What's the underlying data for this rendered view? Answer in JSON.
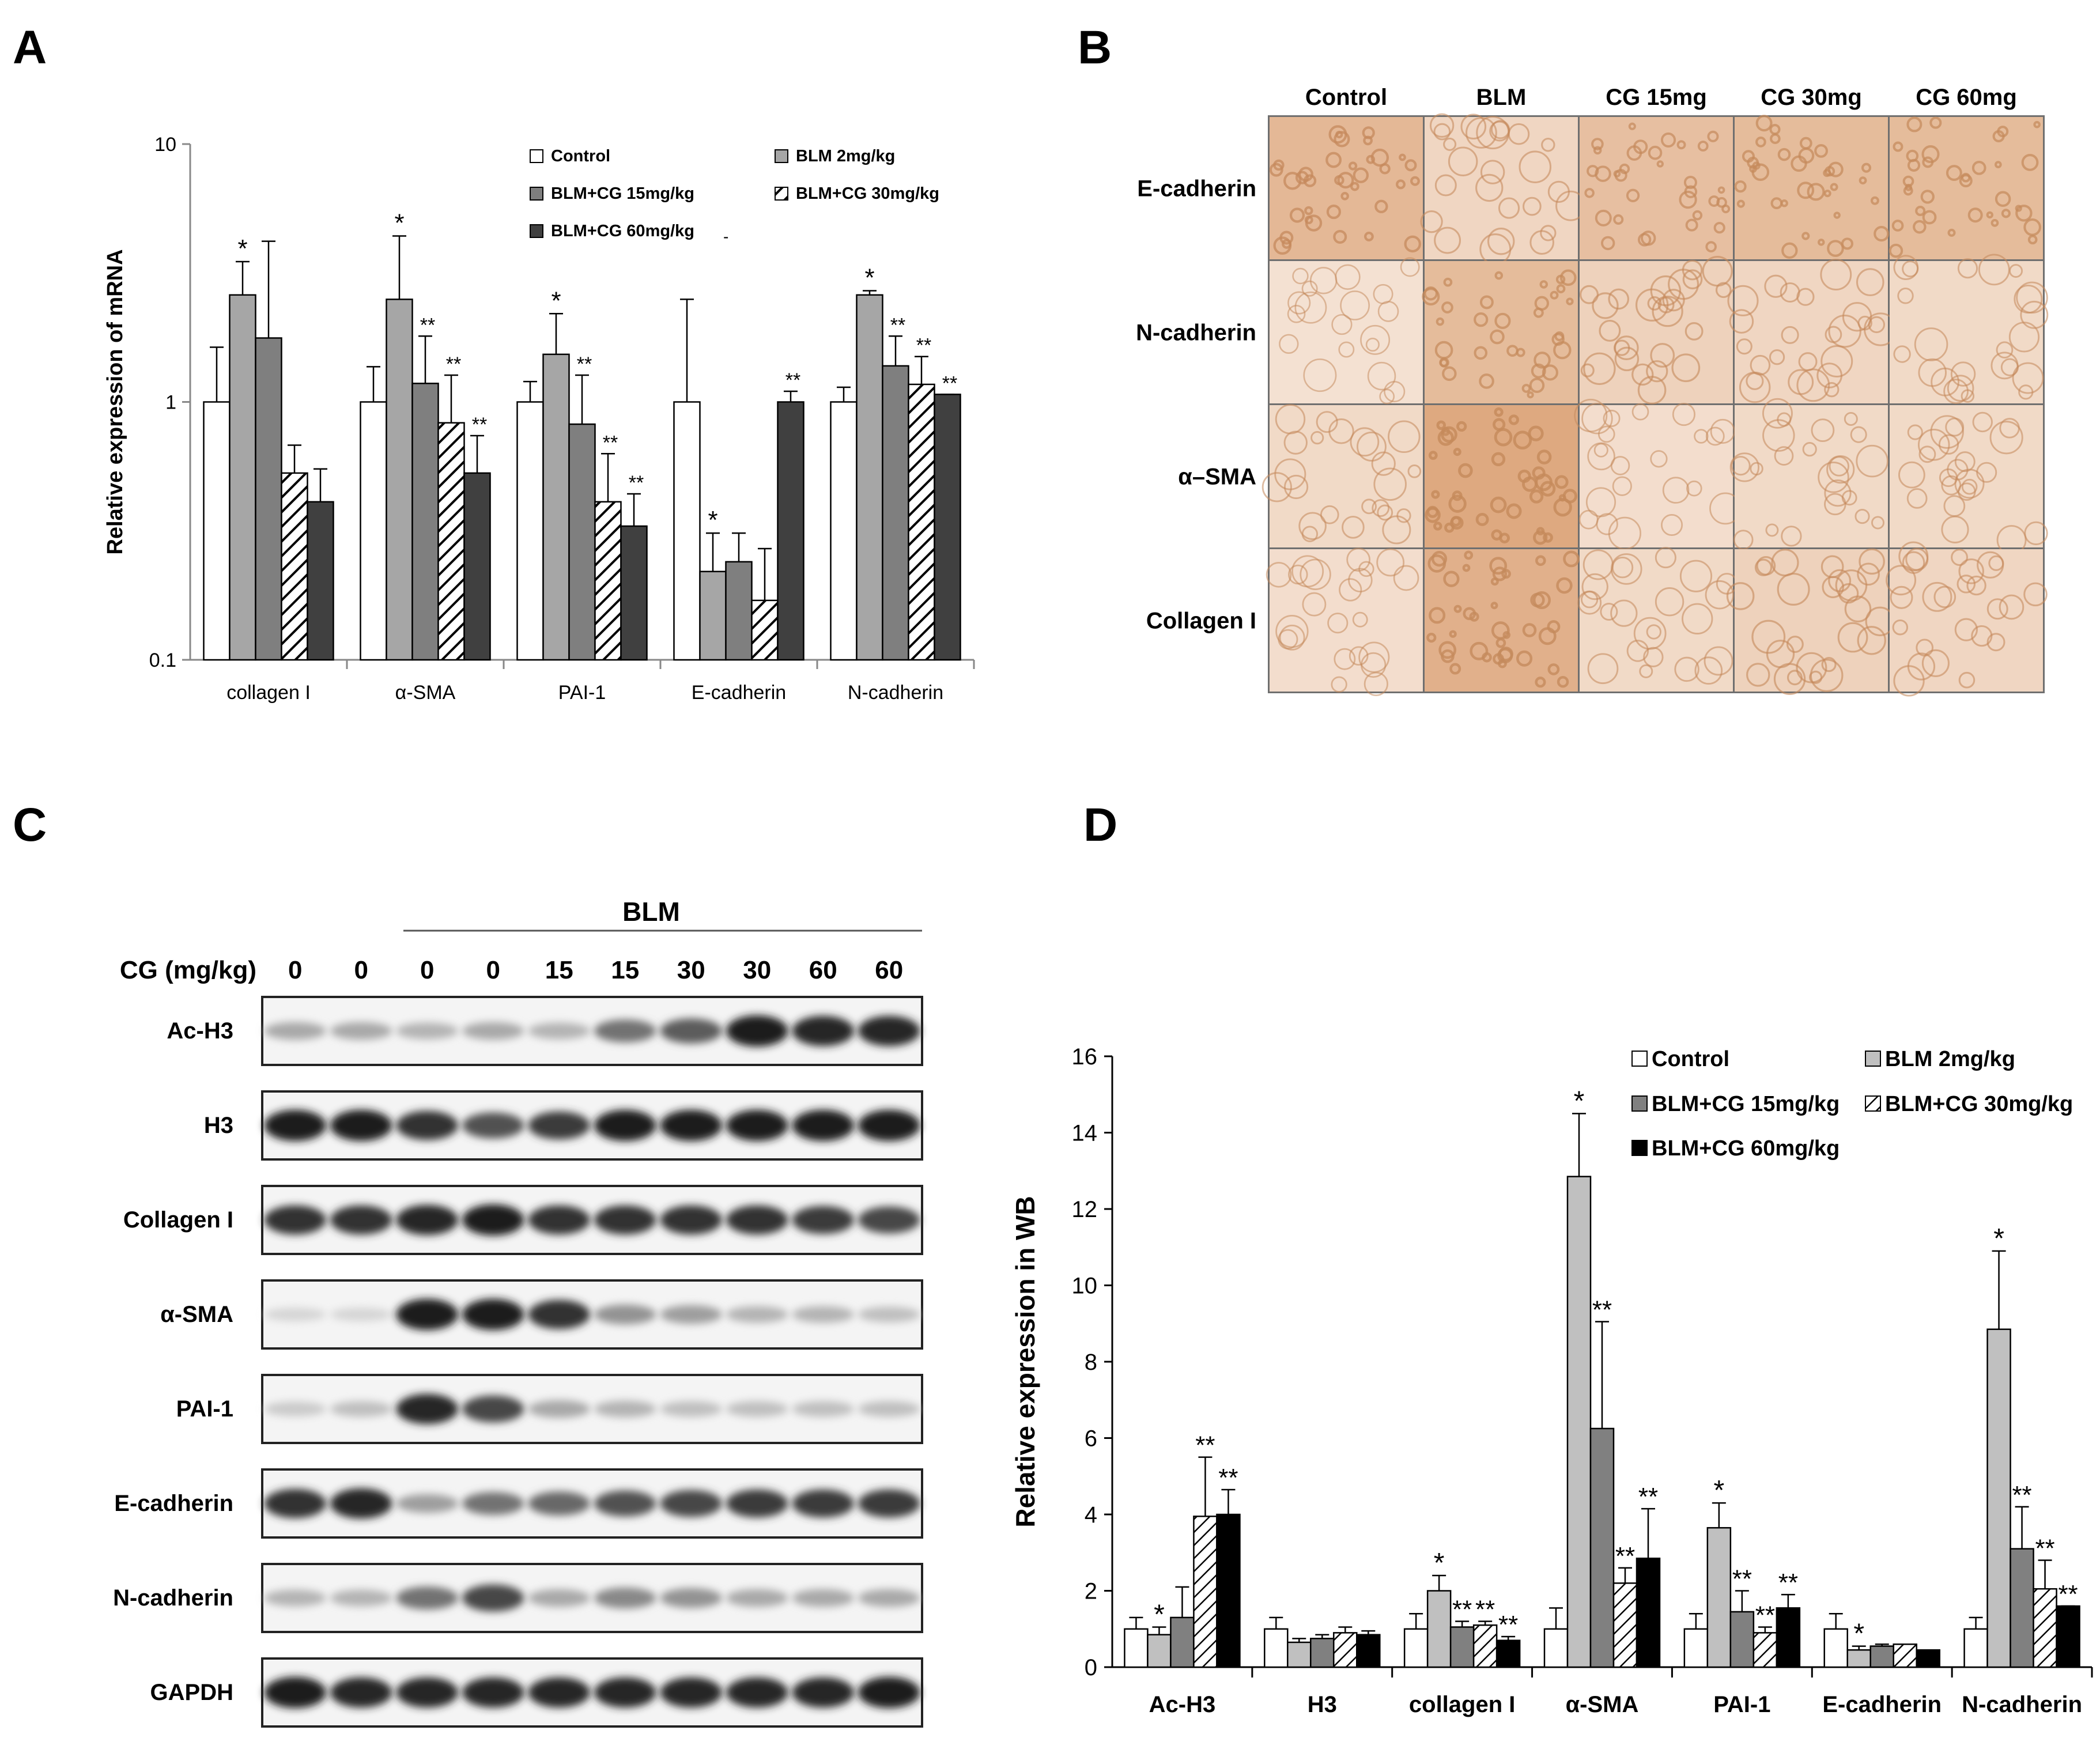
{
  "panels": {
    "a": "A",
    "b": "B",
    "c": "C",
    "d": "D"
  },
  "colors": {
    "control": "#ffffff",
    "blm": "#a6a6a6",
    "cg15": "#7f7f7f",
    "cg30": "hatch",
    "cg60": "#404040",
    "d_blm": "#c0c0c0",
    "d_cg15": "#808080",
    "d_cg60": "#000000",
    "tissue": "#f1ddd0",
    "stain": "#c58a5c"
  },
  "chart_data": [
    {
      "type": "bar",
      "panel": "A",
      "yscale": "log",
      "ylim": [
        0.1,
        10
      ],
      "yticks": [
        "0.1",
        "1",
        "10"
      ],
      "ylabel": "Relative expression of mRNA",
      "xlabel": "",
      "categories": [
        "collagen I",
        "α-SMA",
        "PAI-1",
        "E-cadherin",
        "N-cadherin"
      ],
      "series": [
        {
          "name": "Control",
          "values": [
            1.0,
            1.0,
            1.0,
            1.0,
            1.0
          ],
          "errors": [
            1.63,
            1.37,
            1.2,
            2.5,
            1.14
          ]
        },
        {
          "name": "BLM 2mg/kg",
          "values": [
            2.6,
            2.5,
            1.53,
            0.22,
            2.6
          ],
          "errors": [
            3.5,
            4.4,
            2.2,
            0.31,
            2.7
          ]
        },
        {
          "name": "BLM+CG 15mg/kg",
          "values": [
            1.77,
            1.18,
            0.82,
            0.24,
            1.38
          ],
          "errors": [
            4.2,
            1.8,
            1.27,
            0.31,
            1.8
          ]
        },
        {
          "name": "BLM+CG 30mg/kg",
          "values": [
            0.53,
            0.83,
            0.41,
            0.17,
            1.17
          ],
          "errors": [
            0.68,
            1.27,
            0.63,
            0.27,
            1.5
          ]
        },
        {
          "name": "BLM+CG 60mg/kg",
          "values": [
            0.41,
            0.53,
            0.33,
            1.0,
            1.07
          ],
          "errors": [
            0.55,
            0.74,
            0.44,
            1.1,
            1.07
          ]
        }
      ],
      "annotations": [
        [
          "",
          "*",
          "",
          "",
          ""
        ],
        [
          "",
          "*",
          "**",
          "**",
          "**"
        ],
        [
          "",
          "*",
          "**",
          "**",
          "**"
        ],
        [
          "",
          "*",
          "",
          "",
          "**"
        ],
        [
          "",
          "*",
          "**",
          "**",
          "**"
        ]
      ],
      "legend_position": "top-right",
      "legend_extra_mark": "-"
    },
    {
      "type": "bar",
      "panel": "D",
      "ylim": [
        0,
        16
      ],
      "yticks": [
        "0",
        "2",
        "4",
        "6",
        "8",
        "10",
        "12",
        "14",
        "16"
      ],
      "ylabel": "Relative expression in WB",
      "xlabel": "",
      "categories": [
        "Ac-H3",
        "H3",
        "collagen I",
        "α-SMA",
        "PAI-1",
        "E-cadherin",
        "N-cadherin"
      ],
      "series": [
        {
          "name": "Control",
          "values": [
            1.0,
            1.0,
            1.0,
            1.0,
            1.0,
            1.0,
            1.0
          ],
          "errors": [
            1.3,
            1.3,
            1.4,
            1.55,
            1.4,
            1.4,
            1.3
          ]
        },
        {
          "name": "BLM 2mg/kg",
          "values": [
            0.85,
            0.65,
            2.0,
            12.85,
            3.65,
            0.45,
            8.85
          ],
          "errors": [
            1.05,
            0.75,
            2.4,
            14.5,
            4.3,
            0.55,
            10.9
          ]
        },
        {
          "name": "BLM+CG 15mg/kg",
          "values": [
            1.3,
            0.75,
            1.05,
            6.25,
            1.45,
            0.55,
            3.1
          ],
          "errors": [
            2.1,
            0.85,
            1.2,
            9.05,
            2.0,
            0.6,
            4.2
          ]
        },
        {
          "name": "BLM+CG 30mg/kg",
          "values": [
            3.95,
            0.9,
            1.1,
            2.2,
            0.9,
            0.6,
            2.05
          ],
          "errors": [
            5.5,
            1.05,
            1.2,
            2.6,
            1.05,
            0.6,
            2.8
          ]
        },
        {
          "name": "BLM+CG 60mg/kg",
          "values": [
            4.0,
            0.85,
            0.7,
            2.85,
            1.55,
            0.45,
            1.6
          ],
          "errors": [
            4.65,
            0.95,
            0.8,
            4.15,
            1.9,
            0.45,
            1.6
          ]
        }
      ],
      "annotations": [
        [
          "",
          "*",
          "",
          "**",
          "**"
        ],
        [
          "",
          "",
          "",
          "",
          ""
        ],
        [
          "",
          "*",
          "**",
          "**",
          "**"
        ],
        [
          "",
          "*",
          "**",
          "**",
          "**"
        ],
        [
          "",
          "*",
          "**",
          "**",
          "**"
        ],
        [
          "",
          "*",
          "",
          "",
          ""
        ],
        [
          "",
          "*",
          "**",
          "**",
          "**"
        ]
      ],
      "legend_position": "top-right"
    }
  ],
  "histology": {
    "columns": [
      "Control",
      "BLM",
      "CG 15mg",
      "CG 30mg",
      "CG 60mg"
    ],
    "rows": [
      "E-cadherin",
      "N-cadherin",
      "α–SMA",
      "Collagen I"
    ],
    "stain_level": [
      [
        0.75,
        0.35,
        0.65,
        0.7,
        0.7
      ],
      [
        0.2,
        0.7,
        0.4,
        0.35,
        0.3
      ],
      [
        0.3,
        0.95,
        0.25,
        0.3,
        0.3
      ],
      [
        0.25,
        0.85,
        0.3,
        0.4,
        0.35
      ]
    ]
  },
  "western": {
    "group_label": "BLM",
    "cg_label": "CG (mg/kg)",
    "lanes": [
      "0",
      "0",
      "0",
      "0",
      "15",
      "15",
      "30",
      "30",
      "60",
      "60"
    ],
    "proteins": [
      "Ac-H3",
      "H3",
      "Collagen I",
      "α-SMA",
      "PAI-1",
      "E-cadherin",
      "N-cadherin",
      "GAPDH"
    ],
    "band_intensity": [
      [
        0.3,
        0.3,
        0.25,
        0.3,
        0.25,
        0.55,
        0.65,
        0.95,
        0.9,
        0.9
      ],
      [
        0.95,
        0.95,
        0.85,
        0.7,
        0.8,
        0.95,
        0.95,
        0.95,
        0.95,
        0.95
      ],
      [
        0.85,
        0.85,
        0.9,
        0.95,
        0.85,
        0.85,
        0.85,
        0.85,
        0.8,
        0.75
      ],
      [
        0.1,
        0.1,
        0.95,
        0.95,
        0.85,
        0.4,
        0.35,
        0.25,
        0.25,
        0.2
      ],
      [
        0.15,
        0.2,
        0.9,
        0.75,
        0.3,
        0.25,
        0.2,
        0.2,
        0.2,
        0.2
      ],
      [
        0.85,
        0.9,
        0.35,
        0.55,
        0.6,
        0.7,
        0.75,
        0.8,
        0.8,
        0.8
      ],
      [
        0.25,
        0.25,
        0.55,
        0.75,
        0.3,
        0.45,
        0.4,
        0.3,
        0.3,
        0.3
      ],
      [
        0.95,
        0.9,
        0.9,
        0.9,
        0.9,
        0.9,
        0.9,
        0.9,
        0.9,
        0.95
      ]
    ]
  }
}
